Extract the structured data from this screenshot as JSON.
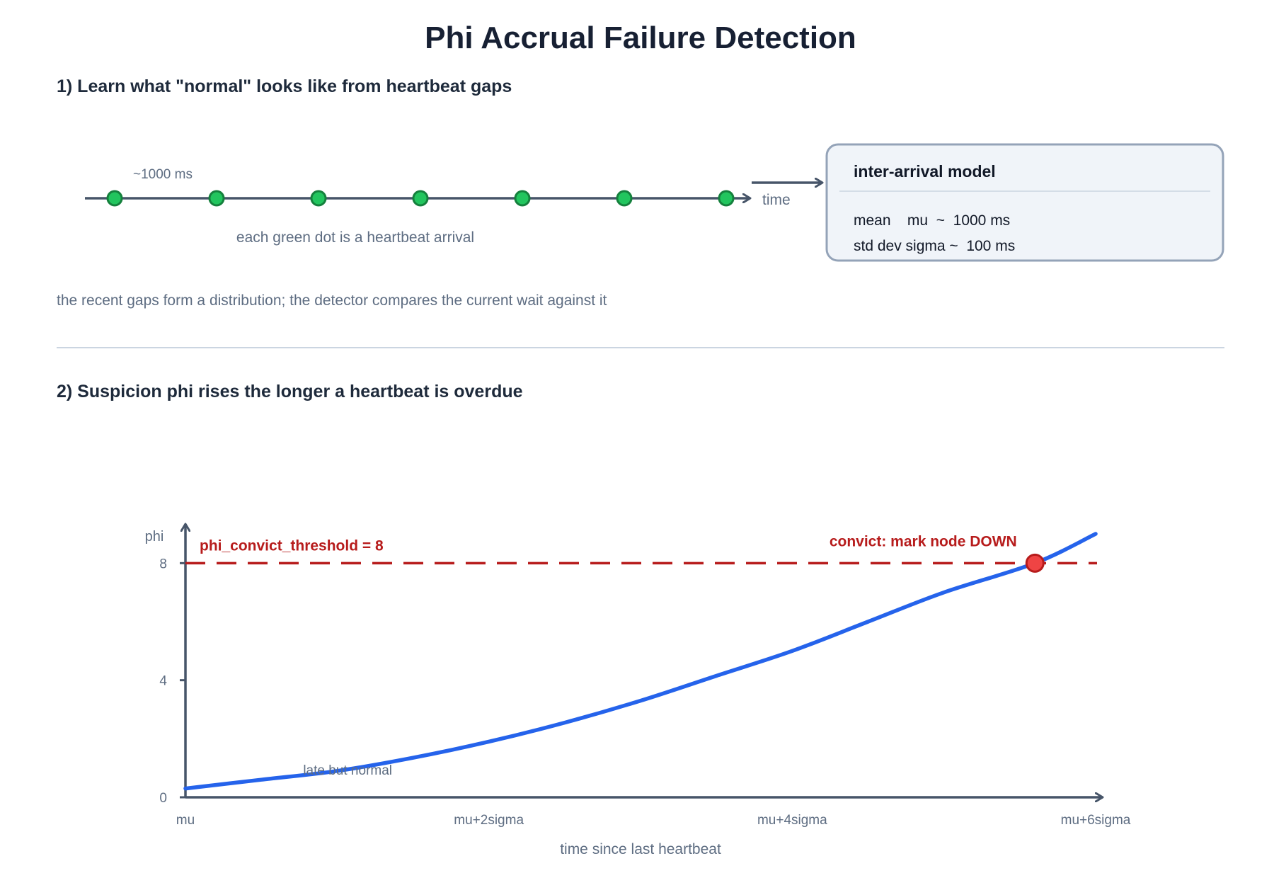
{
  "header": {
    "title": "Phi Accrual Failure Detection"
  },
  "section1": {
    "heading": "1) Learn what \"normal\" looks like from heartbeat gaps",
    "gap_label": "~1000 ms",
    "axis_label": "time",
    "caption": "each green dot is a heartbeat arrival",
    "heartbeat_count": 7,
    "footer_note": "the recent gaps form a distribution; the detector compares the current wait against it",
    "model": {
      "title": "inter-arrival model",
      "mean_line": "mean    mu  ~  1000 ms",
      "std_line": "std dev sigma ~  100 ms"
    }
  },
  "section2": {
    "heading": "2) Suspicion phi rises the longer a heartbeat is overdue"
  },
  "colors": {
    "heartbeat_fill": "#22c55e",
    "heartbeat_stroke": "#15803d",
    "axis": "#475569",
    "curve": "#2563eb",
    "threshold": "#b71c1c",
    "conviction_fill": "#ef4444"
  },
  "chart_data": {
    "type": "line",
    "x_ticks": [
      "mu",
      "mu+2sigma",
      "mu+4sigma",
      "mu+6sigma"
    ],
    "y_ticks": [
      0,
      4,
      8
    ],
    "xlim": [
      0,
      6
    ],
    "ylim": [
      0,
      9
    ],
    "x_label": "time since last heartbeat",
    "y_label": "phi",
    "series": [
      {
        "x": [
          0,
          0.5,
          1,
          1.5,
          2,
          2.5,
          3,
          3.5,
          4,
          4.5,
          5,
          5.6,
          6
        ],
        "y": [
          0.3,
          0.6,
          0.9,
          1.35,
          1.9,
          2.55,
          3.3,
          4.15,
          5.0,
          6.0,
          7.0,
          8.0,
          9.0
        ]
      }
    ],
    "threshold": {
      "value": 8,
      "label": "phi_convict_threshold = 8"
    },
    "conviction": {
      "x": 5.6,
      "y": 8,
      "label": "convict: mark node DOWN"
    },
    "annotation": {
      "x": 1,
      "y": 1.5,
      "text": "late but normal"
    }
  }
}
